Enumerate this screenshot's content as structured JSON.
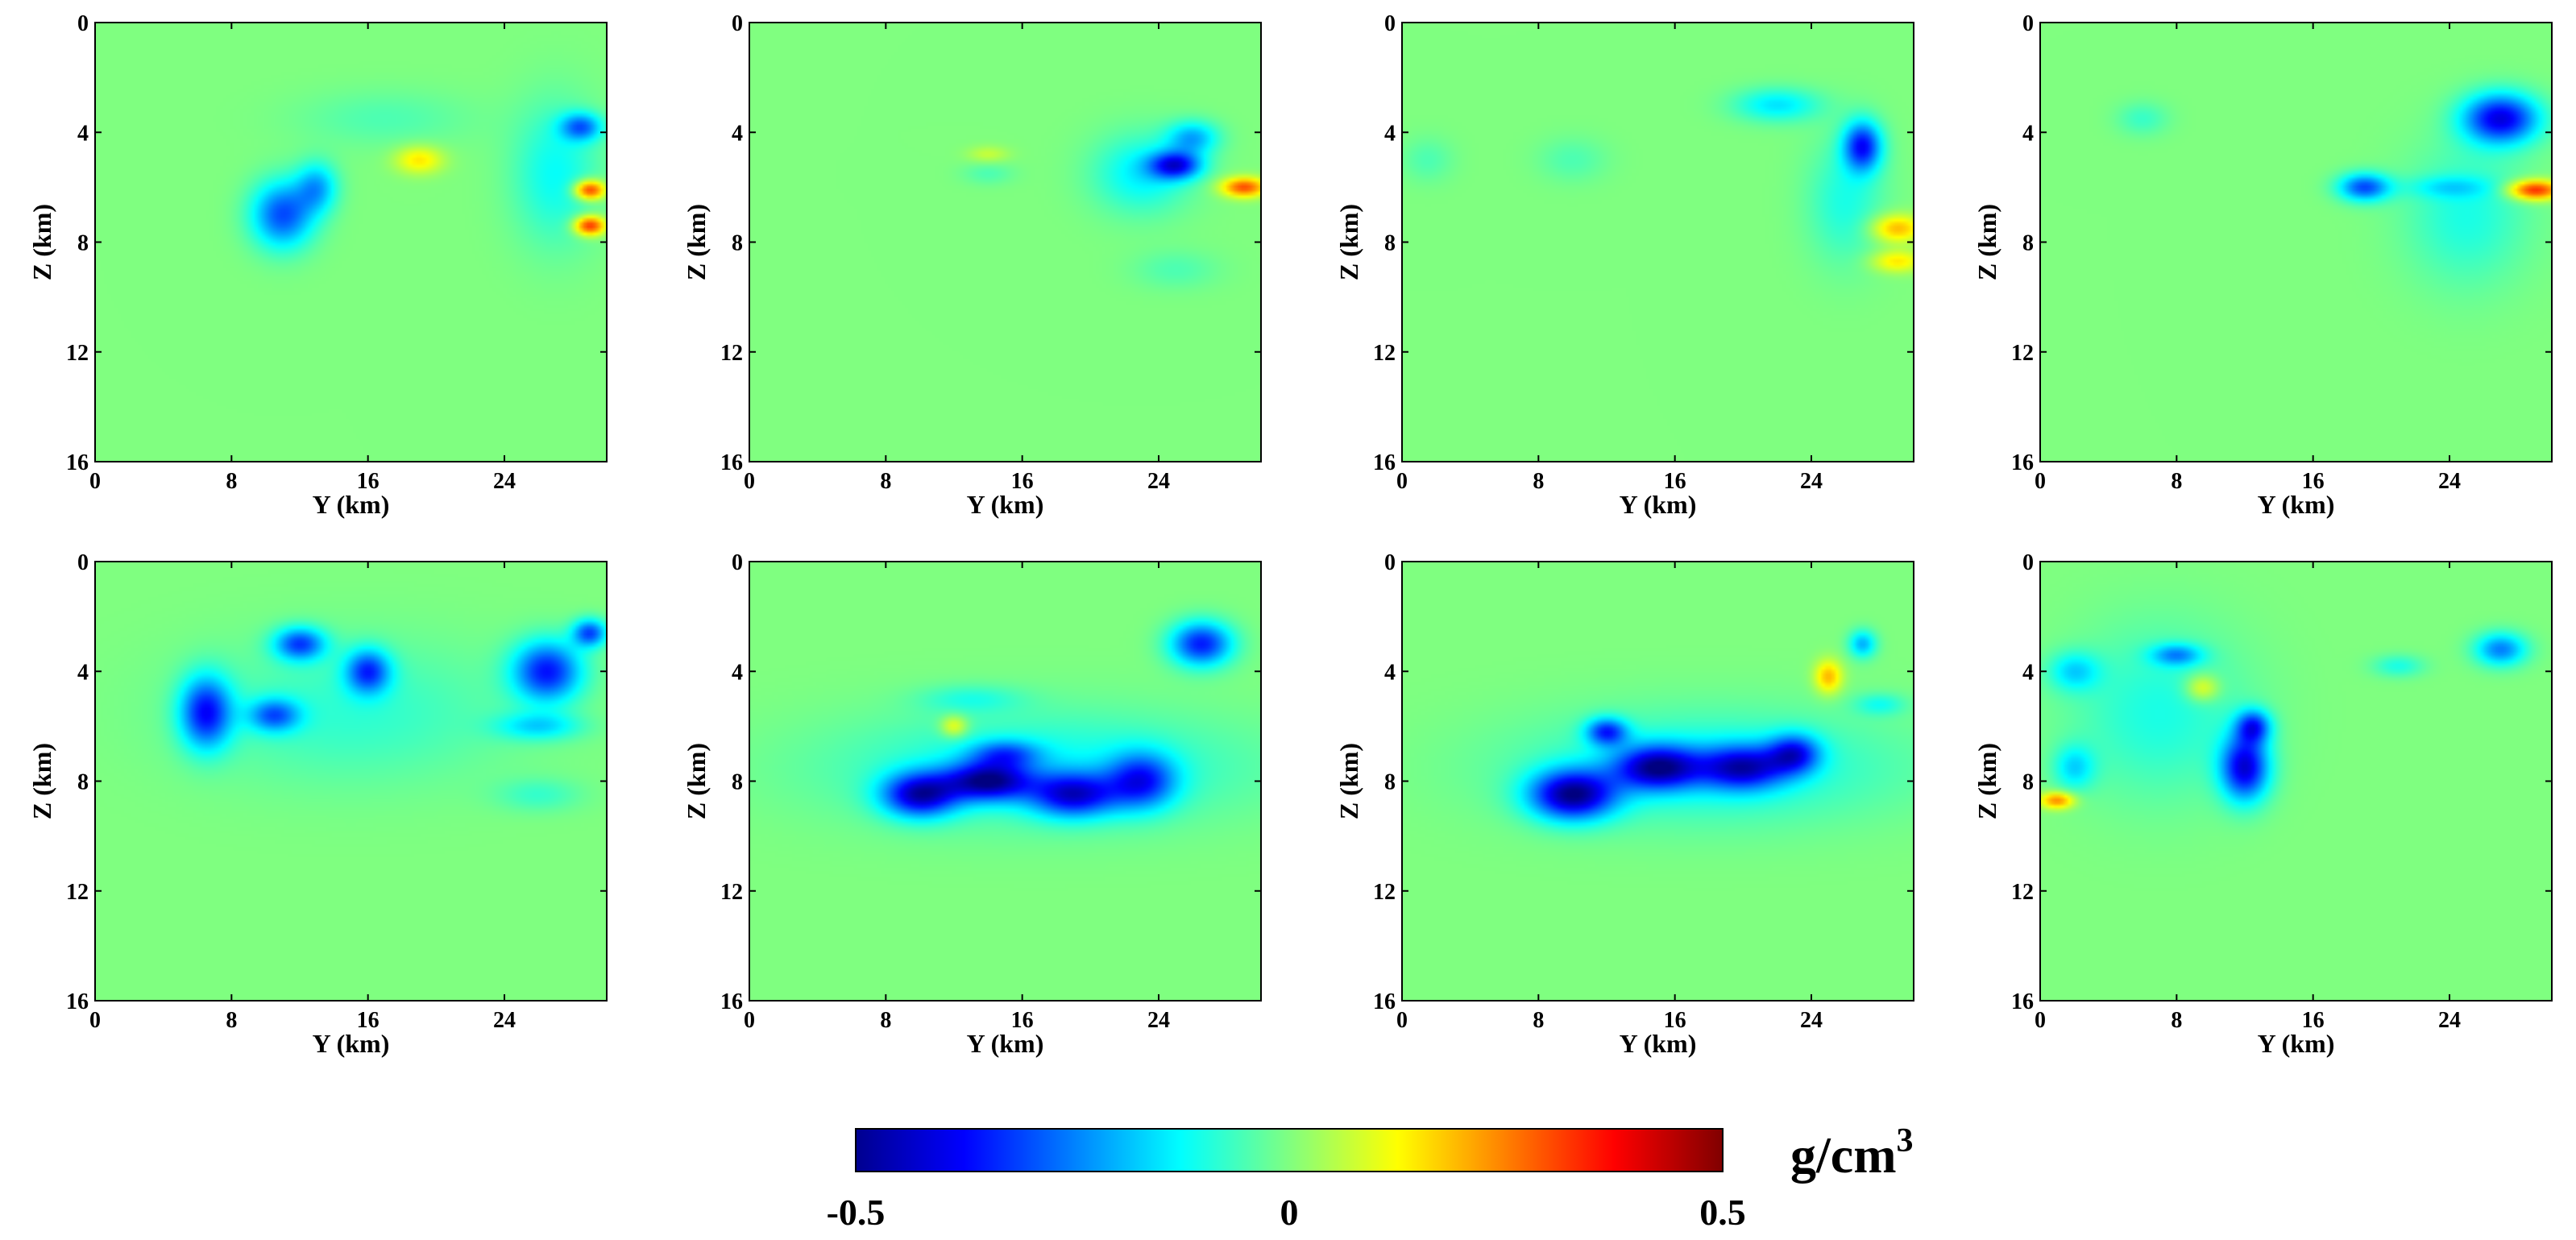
{
  "chart_data": {
    "type": "heatmap",
    "xlabel": "Y (km)",
    "ylabel": "Z (km)",
    "xticks": [
      0,
      8,
      16,
      24
    ],
    "yticks": [
      0,
      4,
      8,
      12,
      16
    ],
    "xlim": [
      0,
      30
    ],
    "ylim": [
      0,
      16
    ],
    "y_direction": "down",
    "panels": [
      {
        "anomalies": [
          {
            "y": 11,
            "z": 7,
            "sy": 1.8,
            "sz": 1.2,
            "v": -0.3
          },
          {
            "y": 13,
            "z": 6,
            "sy": 1.2,
            "sz": 0.9,
            "v": -0.2
          },
          {
            "y": 19,
            "z": 5,
            "sy": 1.4,
            "sz": 0.5,
            "v": 0.15
          },
          {
            "y": 28.5,
            "z": 3.8,
            "sy": 1.2,
            "sz": 0.5,
            "v": -0.25
          },
          {
            "y": 29,
            "z": 6.1,
            "sy": 0.9,
            "sz": 0.35,
            "v": 0.35
          },
          {
            "y": 29,
            "z": 7.4,
            "sy": 0.9,
            "sz": 0.35,
            "v": 0.35
          },
          {
            "y": 27,
            "z": 5.5,
            "sy": 2.5,
            "sz": 2.5,
            "v": -0.12
          },
          {
            "y": 17,
            "z": 3.5,
            "sy": 5,
            "sz": 1,
            "v": -0.05
          }
        ]
      },
      {
        "anomalies": [
          {
            "y": 25,
            "z": 5.2,
            "sy": 1.5,
            "sz": 0.5,
            "v": -0.35
          },
          {
            "y": 26,
            "z": 4.2,
            "sy": 1.5,
            "sz": 0.6,
            "v": -0.2
          },
          {
            "y": 29,
            "z": 6,
            "sy": 1.3,
            "sz": 0.35,
            "v": 0.3
          },
          {
            "y": 23,
            "z": 5.5,
            "sy": 2.8,
            "sz": 1.4,
            "v": -0.14
          },
          {
            "y": 14,
            "z": 4.8,
            "sy": 1.2,
            "sz": 0.3,
            "v": 0.07
          },
          {
            "y": 14,
            "z": 5.5,
            "sy": 1.5,
            "sz": 0.4,
            "v": -0.05
          },
          {
            "y": 25,
            "z": 9,
            "sy": 2.5,
            "sz": 0.7,
            "v": -0.05
          }
        ]
      },
      {
        "anomalies": [
          {
            "y": 27,
            "z": 4.5,
            "sy": 1.1,
            "sz": 0.9,
            "v": -0.35
          },
          {
            "y": 22,
            "z": 3,
            "sy": 2.5,
            "sz": 0.6,
            "v": -0.15
          },
          {
            "y": 29,
            "z": 7.5,
            "sy": 1.5,
            "sz": 0.5,
            "v": 0.2
          },
          {
            "y": 29,
            "z": 8.7,
            "sy": 1.5,
            "sz": 0.4,
            "v": 0.15
          },
          {
            "y": 26,
            "z": 6.5,
            "sy": 2.2,
            "sz": 2.2,
            "v": -0.1
          },
          {
            "y": 10,
            "z": 5,
            "sy": 2,
            "sz": 0.8,
            "v": -0.05
          },
          {
            "y": 1.5,
            "z": 5,
            "sy": 1.5,
            "sz": 0.8,
            "v": -0.05
          }
        ]
      },
      {
        "anomalies": [
          {
            "y": 27,
            "z": 3.5,
            "sy": 2.2,
            "sz": 0.9,
            "v": -0.4
          },
          {
            "y": 19,
            "z": 6,
            "sy": 1.5,
            "sz": 0.5,
            "v": -0.3
          },
          {
            "y": 29,
            "z": 6.1,
            "sy": 1.5,
            "sz": 0.35,
            "v": 0.35
          },
          {
            "y": 24,
            "z": 6,
            "sy": 2.5,
            "sz": 0.4,
            "v": -0.1
          },
          {
            "y": 25,
            "z": 7,
            "sy": 3.5,
            "sz": 2.5,
            "v": -0.1
          },
          {
            "y": 6,
            "z": 3.5,
            "sy": 1.5,
            "sz": 0.6,
            "v": -0.07
          }
        ]
      },
      {
        "anomalies": [
          {
            "y": 6.5,
            "z": 5.5,
            "sy": 1.5,
            "sz": 1.3,
            "v": -0.35
          },
          {
            "y": 12,
            "z": 3,
            "sy": 1.5,
            "sz": 0.6,
            "v": -0.3
          },
          {
            "y": 16,
            "z": 4,
            "sy": 1.3,
            "sz": 0.8,
            "v": -0.3
          },
          {
            "y": 10.5,
            "z": 5.6,
            "sy": 1.5,
            "sz": 0.6,
            "v": -0.25
          },
          {
            "y": 26.5,
            "z": 4,
            "sy": 2,
            "sz": 1.1,
            "v": -0.35
          },
          {
            "y": 29,
            "z": 2.6,
            "sy": 1,
            "sz": 0.5,
            "v": -0.3
          },
          {
            "y": 26,
            "z": 6,
            "sy": 2.5,
            "sz": 0.5,
            "v": -0.15
          },
          {
            "y": 15,
            "z": 5.5,
            "sy": 9,
            "sz": 2.5,
            "v": -0.08
          },
          {
            "y": 26,
            "z": 8.5,
            "sy": 2.5,
            "sz": 0.6,
            "v": -0.07
          }
        ]
      },
      {
        "anomalies": [
          {
            "y": 10,
            "z": 8.5,
            "sy": 2.2,
            "sz": 0.8,
            "v": -0.4
          },
          {
            "y": 14,
            "z": 8,
            "sy": 2.5,
            "sz": 0.7,
            "v": -0.4
          },
          {
            "y": 19,
            "z": 8.5,
            "sy": 2.5,
            "sz": 0.8,
            "v": -0.35
          },
          {
            "y": 23,
            "z": 8,
            "sy": 2,
            "sz": 1,
            "v": -0.3
          },
          {
            "y": 26.5,
            "z": 3,
            "sy": 1.8,
            "sz": 0.8,
            "v": -0.35
          },
          {
            "y": 12,
            "z": 6,
            "sy": 0.8,
            "sz": 0.4,
            "v": 0.15
          },
          {
            "y": 15,
            "z": 7,
            "sy": 2,
            "sz": 0.5,
            "v": -0.2
          },
          {
            "y": 17,
            "z": 7.5,
            "sy": 12,
            "sz": 2,
            "v": -0.12
          },
          {
            "y": 13,
            "z": 5,
            "sy": 3,
            "sz": 0.5,
            "v": -0.08
          }
        ]
      },
      {
        "anomalies": [
          {
            "y": 10,
            "z": 8.5,
            "sy": 2.5,
            "sz": 0.9,
            "v": -0.45
          },
          {
            "y": 15,
            "z": 7.5,
            "sy": 2.5,
            "sz": 0.8,
            "v": -0.4
          },
          {
            "y": 20,
            "z": 7.5,
            "sy": 2.5,
            "sz": 0.8,
            "v": -0.35
          },
          {
            "y": 23,
            "z": 7,
            "sy": 1.5,
            "sz": 0.7,
            "v": -0.3
          },
          {
            "y": 12,
            "z": 6.2,
            "sy": 1.2,
            "sz": 0.5,
            "v": -0.3
          },
          {
            "y": 25,
            "z": 4.2,
            "sy": 0.8,
            "sz": 0.6,
            "v": 0.2
          },
          {
            "y": 27,
            "z": 3,
            "sy": 0.8,
            "sz": 0.5,
            "v": -0.2
          },
          {
            "y": 28,
            "z": 5.2,
            "sy": 1.5,
            "sz": 0.4,
            "v": -0.1
          },
          {
            "y": 18,
            "z": 7.5,
            "sy": 11,
            "sz": 2,
            "v": -0.12
          }
        ]
      },
      {
        "anomalies": [
          {
            "y": 12,
            "z": 7.5,
            "sy": 1.4,
            "sz": 1.2,
            "v": -0.4
          },
          {
            "y": 12.5,
            "z": 6,
            "sy": 1,
            "sz": 0.6,
            "v": -0.3
          },
          {
            "y": 9.5,
            "z": 4.6,
            "sy": 1,
            "sz": 0.5,
            "v": 0.15
          },
          {
            "y": 8,
            "z": 3.4,
            "sy": 1.5,
            "sz": 0.4,
            "v": -0.2
          },
          {
            "y": 1,
            "z": 8.7,
            "sy": 1,
            "sz": 0.3,
            "v": 0.25
          },
          {
            "y": 2,
            "z": 7.5,
            "sy": 1.2,
            "sz": 0.8,
            "v": -0.15
          },
          {
            "y": 2,
            "z": 4,
            "sy": 1.5,
            "sz": 0.7,
            "v": -0.15
          },
          {
            "y": 27,
            "z": 3.2,
            "sy": 1.5,
            "sz": 0.6,
            "v": -0.25
          },
          {
            "y": 21,
            "z": 3.8,
            "sy": 1.5,
            "sz": 0.4,
            "v": -0.1
          },
          {
            "y": 7,
            "z": 5.5,
            "sy": 5,
            "sz": 3,
            "v": -0.1
          }
        ]
      }
    ],
    "colorbar": {
      "label": "g/cm",
      "label_superscript": "3",
      "vmin": -0.5,
      "vmax": 0.5,
      "ticks": [
        "-0.5",
        "0",
        "0.5"
      ],
      "colormap": "jet"
    }
  }
}
